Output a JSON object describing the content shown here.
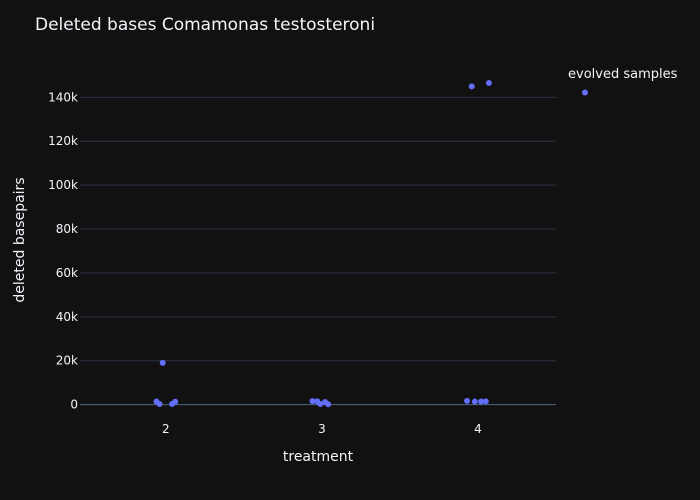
{
  "chart_data": {
    "type": "scatter",
    "title": "Deleted bases Comamonas testosteroni",
    "xlabel": "treatment",
    "ylabel": "deleted basepairs",
    "x_categories": [
      "2",
      "3",
      "4"
    ],
    "xlim": [
      1.45,
      4.5
    ],
    "ylim": [
      -7000,
      157000
    ],
    "y_ticks": [
      0,
      20000,
      40000,
      60000,
      80000,
      100000,
      120000,
      140000
    ],
    "y_tick_labels": [
      "0",
      "20k",
      "40k",
      "60k",
      "80k",
      "100k",
      "120k",
      "140k"
    ],
    "grid": true,
    "legend_position": "top-right",
    "series": [
      {
        "name": "evolved samples",
        "color": "#636efa",
        "points": [
          {
            "x": 1.94,
            "y": 1400
          },
          {
            "x": 1.96,
            "y": 300
          },
          {
            "x": 1.98,
            "y": 19000
          },
          {
            "x": 2.04,
            "y": 300
          },
          {
            "x": 2.06,
            "y": 1300
          },
          {
            "x": 2.94,
            "y": 1600
          },
          {
            "x": 2.97,
            "y": 1500
          },
          {
            "x": 2.99,
            "y": 300
          },
          {
            "x": 3.02,
            "y": 1200
          },
          {
            "x": 3.04,
            "y": 200
          },
          {
            "x": 3.93,
            "y": 1700
          },
          {
            "x": 3.96,
            "y": 145000
          },
          {
            "x": 3.98,
            "y": 1400
          },
          {
            "x": 4.02,
            "y": 1400
          },
          {
            "x": 4.05,
            "y": 1500
          },
          {
            "x": 4.07,
            "y": 146500
          }
        ]
      }
    ]
  }
}
